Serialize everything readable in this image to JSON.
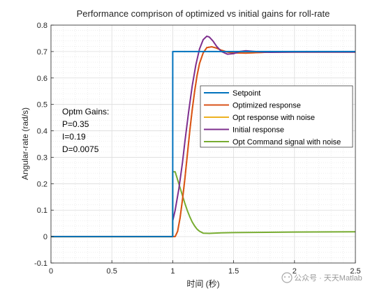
{
  "chart_data": {
    "type": "line",
    "title": "Performance comprison of optimized vs initial gains for roll-rate",
    "xlabel": "时间 (秒)",
    "ylabel": "Angular-rate (rad/s)",
    "xlim": [
      0,
      2.5
    ],
    "ylim": [
      -0.1,
      0.8
    ],
    "xticks": [
      "0",
      "0.5",
      "1",
      "1.5",
      "2",
      "2.5"
    ],
    "yticks": [
      "-0.1",
      "0",
      "0.1",
      "0.2",
      "0.3",
      "0.4",
      "0.5",
      "0.6",
      "0.7",
      "0.8"
    ],
    "grid": true,
    "minor_grid": true,
    "legend_position": "right",
    "series": [
      {
        "name": "Setpoint",
        "color": "#0072BD",
        "x": [
          0,
          1.0,
          1.0,
          2.5
        ],
        "y": [
          0,
          0,
          0.7,
          0.7
        ]
      },
      {
        "name": "Optimized response",
        "color": "#D95319",
        "x": [
          0,
          1.0,
          1.02,
          1.04,
          1.06,
          1.08,
          1.1,
          1.12,
          1.14,
          1.16,
          1.18,
          1.2,
          1.22,
          1.25,
          1.28,
          1.32,
          1.36,
          1.4,
          1.45,
          1.5,
          1.6,
          1.7,
          1.8,
          2.0,
          2.2,
          2.5
        ],
        "y": [
          0,
          0,
          0.0,
          0.02,
          0.07,
          0.14,
          0.22,
          0.31,
          0.4,
          0.48,
          0.55,
          0.61,
          0.655,
          0.695,
          0.715,
          0.718,
          0.713,
          0.705,
          0.698,
          0.695,
          0.694,
          0.696,
          0.698,
          0.698,
          0.698,
          0.698
        ]
      },
      {
        "name": "Opt response with noise",
        "color": "#EDB120",
        "x": [
          0,
          1.0,
          1.02,
          1.04,
          1.06,
          1.08,
          1.1,
          1.12,
          1.14,
          1.16,
          1.18,
          1.2,
          1.22,
          1.25,
          1.28,
          1.32,
          1.36,
          1.4,
          1.45,
          1.5,
          1.6,
          1.7,
          1.8,
          2.0,
          2.2,
          2.5
        ],
        "y": [
          0,
          0,
          0.0,
          0.02,
          0.07,
          0.14,
          0.22,
          0.31,
          0.4,
          0.48,
          0.55,
          0.61,
          0.655,
          0.695,
          0.715,
          0.718,
          0.713,
          0.705,
          0.698,
          0.695,
          0.694,
          0.696,
          0.698,
          0.698,
          0.698,
          0.698
        ]
      },
      {
        "name": "Initial response",
        "color": "#7E2F8E",
        "x": [
          1.0,
          1.02,
          1.05,
          1.08,
          1.1,
          1.13,
          1.16,
          1.19,
          1.22,
          1.25,
          1.28,
          1.3,
          1.33,
          1.36,
          1.4,
          1.45,
          1.5,
          1.55,
          1.6,
          1.7,
          1.8,
          2.0,
          2.2,
          2.5
        ],
        "y": [
          0.06,
          0.1,
          0.18,
          0.28,
          0.36,
          0.47,
          0.57,
          0.65,
          0.71,
          0.745,
          0.758,
          0.755,
          0.74,
          0.72,
          0.7,
          0.69,
          0.692,
          0.7,
          0.703,
          0.699,
          0.697,
          0.698,
          0.698,
          0.698
        ]
      },
      {
        "name": "Opt Command signal with noise",
        "color": "#77AC30",
        "x": [
          0,
          0.999,
          1.0,
          1.02,
          1.04,
          1.06,
          1.08,
          1.1,
          1.12,
          1.14,
          1.16,
          1.18,
          1.2,
          1.22,
          1.25,
          1.3,
          1.4,
          1.5,
          2.0,
          2.5
        ],
        "y": [
          0,
          0,
          0.245,
          0.245,
          0.215,
          0.185,
          0.155,
          0.125,
          0.098,
          0.075,
          0.055,
          0.04,
          0.028,
          0.02,
          0.013,
          0.012,
          0.014,
          0.015,
          0.017,
          0.018
        ]
      }
    ],
    "annotation": [
      "Optm Gains:",
      "P=0.35",
      "I=0.19",
      "D=0.0075"
    ]
  },
  "watermark": "公众号 · 天天Matlab"
}
